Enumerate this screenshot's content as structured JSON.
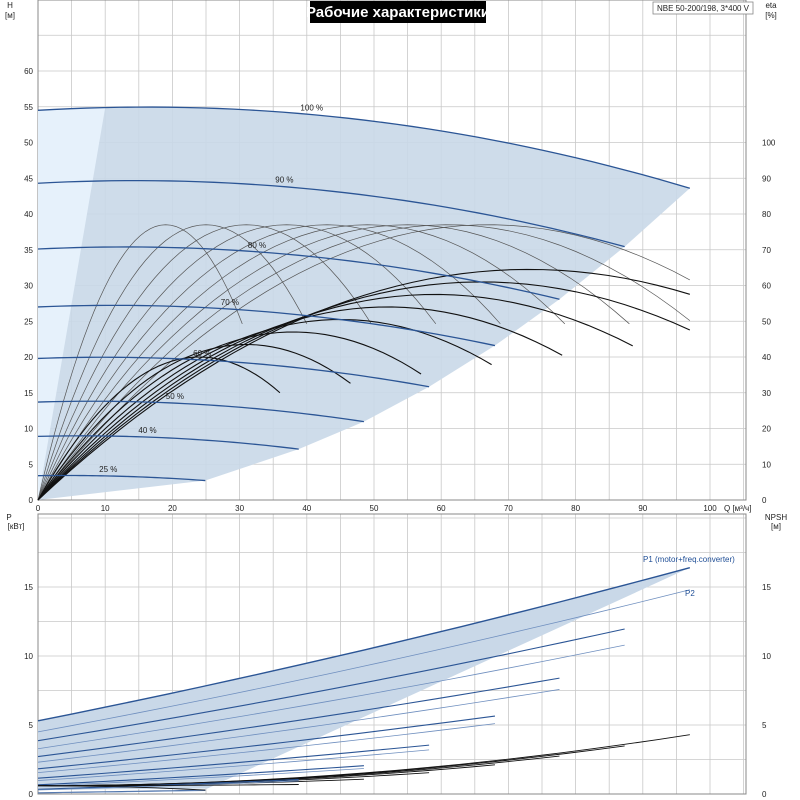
{
  "title": "Рабочие характеристики",
  "model": "NBE 50-200/198, 3*400 V",
  "chart_data": [
    {
      "type": "line",
      "name": "head",
      "ylabel": "H",
      "yunit": "[м]",
      "y2label": "eta",
      "y2unit": "[%]",
      "xlabel": "Q [м³/ч]",
      "xlim": [
        0,
        105
      ],
      "ylim": [
        0,
        65
      ],
      "y2lim": [
        0,
        130
      ],
      "x_ticks": [
        "0",
        "10",
        "20",
        "30",
        "40",
        "50",
        "60",
        "70",
        "80",
        "90",
        "100"
      ],
      "y_ticks": [
        "0",
        "5",
        "10",
        "15",
        "20",
        "25",
        "30",
        "35",
        "40",
        "45",
        "50",
        "55",
        "60"
      ],
      "y2_ticks": [
        "0",
        "10",
        "20",
        "30",
        "40",
        "50",
        "60",
        "70",
        "80",
        "90",
        "100"
      ],
      "speed_curves": [
        {
          "label": "100 %",
          "h0": 54.5,
          "qmax": 97
        },
        {
          "label": "90 %",
          "h0": 44.3,
          "qmax": 87.3
        },
        {
          "label": "80 %",
          "h0": 35.1,
          "qmax": 77.6
        },
        {
          "label": "70 %",
          "h0": 27.0,
          "qmax": 68
        },
        {
          "label": "60 %",
          "h0": 19.8,
          "qmax": 58.2
        },
        {
          "label": "50 %",
          "h0": 13.7,
          "qmax": 48.5
        },
        {
          "label": "40 %",
          "h0": 8.9,
          "qmax": 38.8
        },
        {
          "label": "25 %",
          "h0": 3.4,
          "qmax": 24.9
        }
      ],
      "grid": true
    },
    {
      "type": "line",
      "name": "power",
      "ylabel": "P",
      "yunit": "[кВт]",
      "y2label": "NPSH",
      "y2unit": "[м]",
      "xlim": [
        0,
        105
      ],
      "ylim": [
        0,
        20
      ],
      "y_ticks": [
        "0",
        "5",
        "10",
        "15"
      ],
      "y2_ticks": [
        "0",
        "5",
        "10",
        "15"
      ],
      "series": [
        {
          "name": "P1 (motor+freq.converter)",
          "start": 5.3,
          "end": 16.4,
          "qmax": 97
        },
        {
          "name": "P2",
          "start": 4.5,
          "end": 14.8,
          "qmax": 96
        }
      ],
      "npsh_end": 4.3,
      "grid": true
    }
  ]
}
